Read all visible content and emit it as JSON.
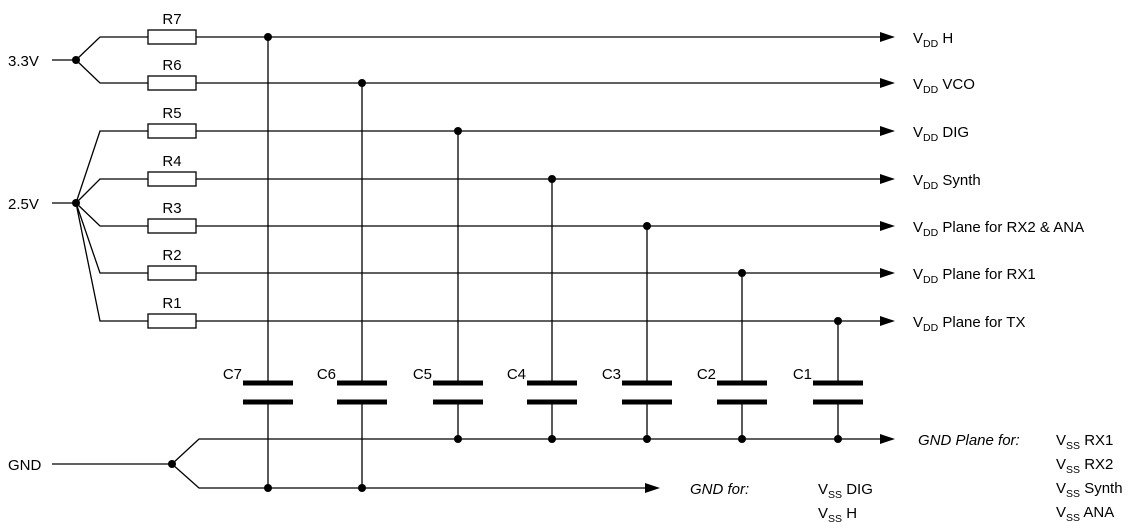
{
  "sources": {
    "v33": "3.3V",
    "v25": "2.5V",
    "gnd": "GND"
  },
  "resistors": [
    "R7",
    "R6",
    "R5",
    "R4",
    "R3",
    "R2",
    "R1"
  ],
  "capacitors": [
    "C7",
    "C6",
    "C5",
    "C4",
    "C3",
    "C2",
    "C1"
  ],
  "rails": [
    {
      "sym": "V",
      "sub": "DD",
      "text": " H"
    },
    {
      "sym": "V",
      "sub": "DD",
      "text": " VCO"
    },
    {
      "sym": "V",
      "sub": "DD",
      "text": " DIG"
    },
    {
      "sym": "V",
      "sub": "DD",
      "text": " Synth"
    },
    {
      "sym": "V",
      "sub": "DD",
      "text": " Plane for RX2 & ANA"
    },
    {
      "sym": "V",
      "sub": "DD",
      "text": " Plane for RX1"
    },
    {
      "sym": "V",
      "sub": "DD",
      "text": " Plane for TX"
    }
  ],
  "gnd_plane": {
    "label": "GND Plane for:",
    "items": [
      {
        "sym": "V",
        "sub": "SS",
        "text": " RX1"
      },
      {
        "sym": "V",
        "sub": "SS",
        "text": " RX2"
      },
      {
        "sym": "V",
        "sub": "SS",
        "text": " Synth"
      },
      {
        "sym": "V",
        "sub": "SS",
        "text": " ANA"
      }
    ]
  },
  "gnd_for": {
    "label": "GND for:",
    "items": [
      {
        "sym": "V",
        "sub": "SS",
        "text": " DIG"
      },
      {
        "sym": "V",
        "sub": "SS",
        "text": " H"
      }
    ]
  }
}
